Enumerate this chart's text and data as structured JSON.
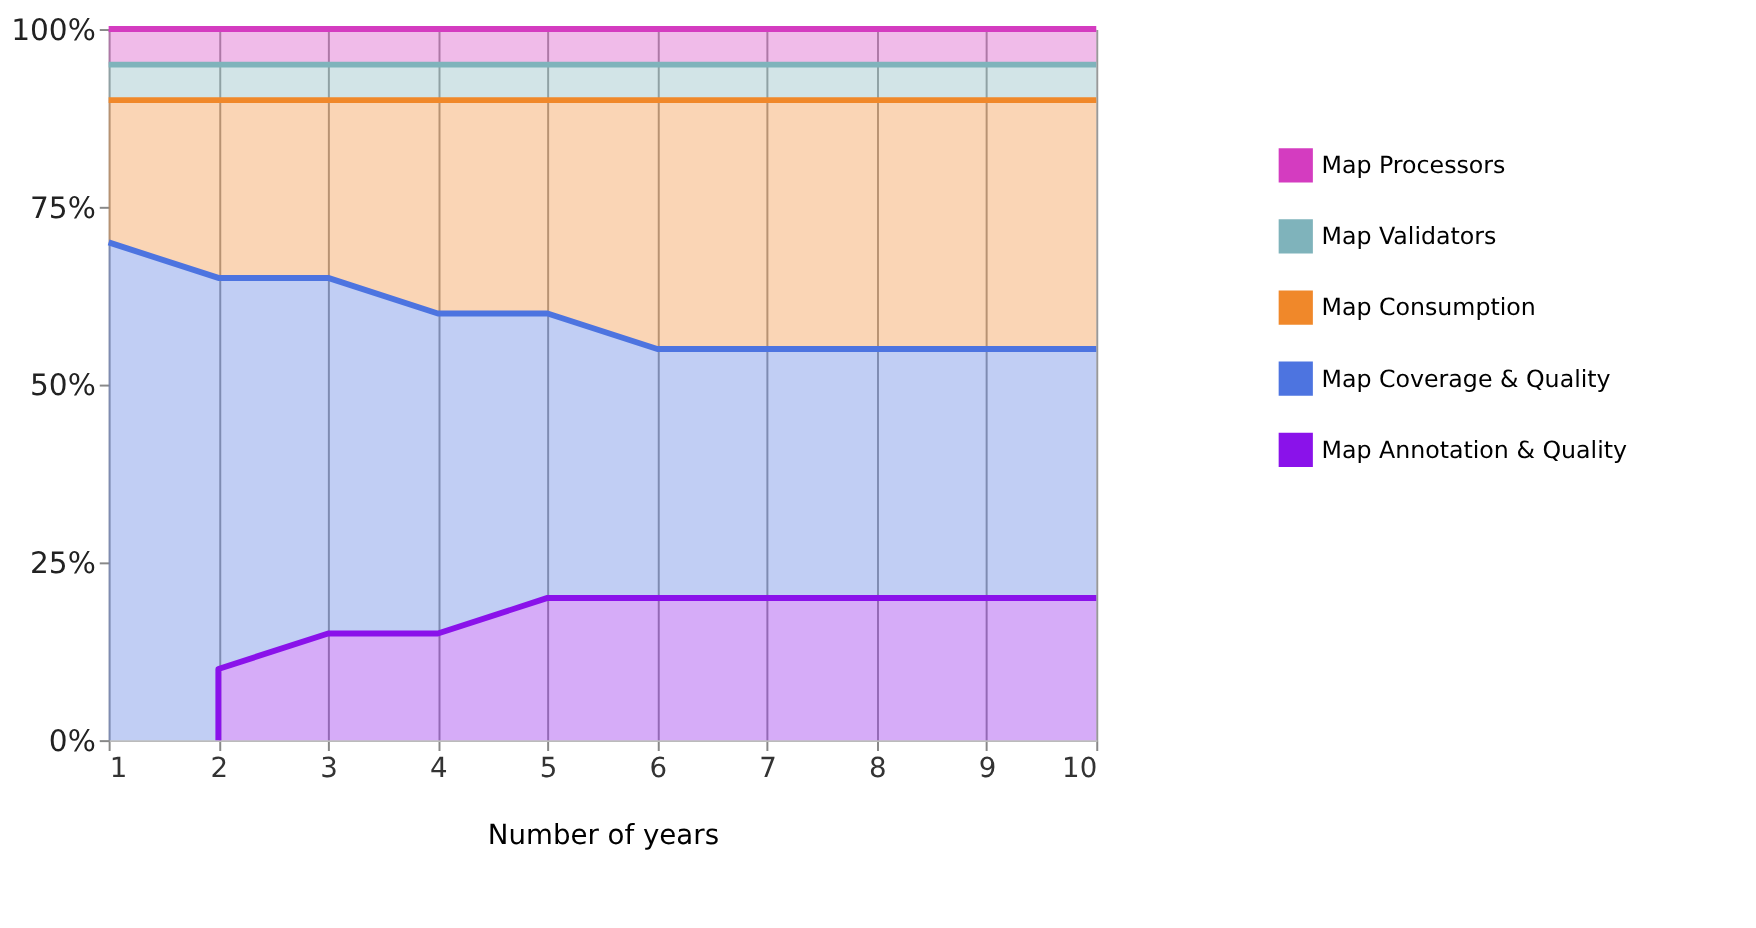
{
  "chart_data": {
    "type": "area",
    "stacked": true,
    "xlabel": "Number of years",
    "x": [
      1,
      2,
      3,
      4,
      5,
      6,
      7,
      8,
      9,
      10
    ],
    "series": [
      {
        "name": "Map Annotation & Quality",
        "color": "#8a12ea",
        "values": [
          null,
          10,
          15,
          15,
          20,
          20,
          20,
          20,
          20,
          20
        ]
      },
      {
        "name": "Map Coverage & Quality",
        "color": "#4d74e0",
        "values": [
          70,
          55,
          50,
          45,
          40,
          35,
          35,
          35,
          35,
          35
        ]
      },
      {
        "name": "Map Consumption",
        "color": "#f0882a",
        "values": [
          20,
          25,
          25,
          30,
          30,
          35,
          35,
          35,
          35,
          35
        ]
      },
      {
        "name": "Map Validators",
        "color": "#7fb3bb",
        "values": [
          5,
          5,
          5,
          5,
          5,
          5,
          5,
          5,
          5,
          5
        ]
      },
      {
        "name": "Map Processors",
        "color": "#d43cc0",
        "values": [
          5,
          5,
          5,
          5,
          5,
          5,
          5,
          5,
          5,
          5
        ]
      }
    ],
    "xlim": [
      1,
      10
    ],
    "xticks": [
      1,
      2,
      3,
      4,
      5,
      6,
      7,
      8,
      9,
      10
    ],
    "ylim": [
      0,
      100
    ],
    "yticks": [
      {
        "value": 0,
        "label": "0%"
      },
      {
        "value": 25,
        "label": "25%"
      },
      {
        "value": 50,
        "label": "50%"
      },
      {
        "value": 75,
        "label": "75%"
      },
      {
        "value": 100,
        "label": "100%"
      }
    ],
    "grid": "x",
    "legend": "right"
  }
}
